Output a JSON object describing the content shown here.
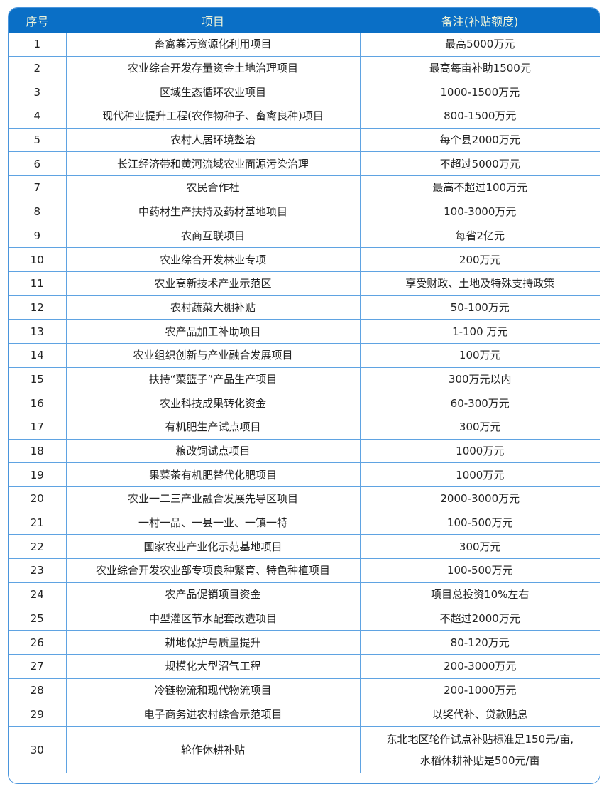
{
  "headers": [
    "序号",
    "项目",
    "备注(补贴额度)"
  ],
  "rows": [
    {
      "no": "1",
      "item": "畜禽粪污资源化利用项目",
      "note": "最高5000万元"
    },
    {
      "no": "2",
      "item": "农业综合开发存量资金土地治理项目",
      "note": "最高每亩补助1500元"
    },
    {
      "no": "3",
      "item": "区域生态循环农业项目",
      "note": "1000-1500万元"
    },
    {
      "no": "4",
      "item": "现代种业提升工程(农作物种子、畜禽良种)项目",
      "note": "800-1500万元"
    },
    {
      "no": "5",
      "item": "农村人居环境整治",
      "note": "每个县2000万元"
    },
    {
      "no": "6",
      "item": "长江经济带和黄河流域农业面源污染治理",
      "note": "不超过5000万元"
    },
    {
      "no": "7",
      "item": "农民合作社",
      "note": "最高不超过100万元"
    },
    {
      "no": "8",
      "item": "中药材生产扶持及药材基地项目",
      "note": "100-3000万元"
    },
    {
      "no": "9",
      "item": "农商互联项目",
      "note": "每省2亿元"
    },
    {
      "no": "10",
      "item": "农业综合开发林业专项",
      "note": "200万元"
    },
    {
      "no": "11",
      "item": "农业高新技术产业示范区",
      "note": "享受财政、土地及特殊支持政策"
    },
    {
      "no": "12",
      "item": "农村蔬菜大棚补贴",
      "note": "50-100万元"
    },
    {
      "no": "13",
      "item": "农产品加工补助项目",
      "note": "1-100 万元"
    },
    {
      "no": "14",
      "item": "农业组织创新与产业融合发展项目",
      "note": "100万元"
    },
    {
      "no": "15",
      "item": "扶持“菜篮子”产品生产项目",
      "note": "300万元以内"
    },
    {
      "no": "16",
      "item": "农业科技成果转化资金",
      "note": "60-300万元"
    },
    {
      "no": "17",
      "item": "有机肥生产试点项目",
      "note": "300万元"
    },
    {
      "no": "18",
      "item": "粮改饲试点项目",
      "note": "1000万元"
    },
    {
      "no": "19",
      "item": "果菜茶有机肥替代化肥项目",
      "note": "1000万元"
    },
    {
      "no": "20",
      "item": "农业一二三产业融合发展先导区项目",
      "note": "2000-3000万元"
    },
    {
      "no": "21",
      "item": "一村一品、一县一业、一镇一特",
      "note": "100-500万元"
    },
    {
      "no": "22",
      "item": "国家农业产业化示范基地项目",
      "note": "300万元"
    },
    {
      "no": "23",
      "item": "农业综合开发农业部专项良种繁育、特色种植项目",
      "note": "100-500万元"
    },
    {
      "no": "24",
      "item": "农产品促销项目资金",
      "note": "项目总投资10%左右"
    },
    {
      "no": "25",
      "item": "中型灌区节水配套改造项目",
      "note": "不超过2000万元"
    },
    {
      "no": "26",
      "item": "耕地保护与质量提升",
      "note": "80-120万元"
    },
    {
      "no": "27",
      "item": "规模化大型沼气工程",
      "note": "200-3000万元"
    },
    {
      "no": "28",
      "item": "冷链物流和现代物流项目",
      "note": "200-1000万元"
    },
    {
      "no": "29",
      "item": "电子商务进农村综合示范项目",
      "note": "以奖代补、贷款贴息"
    },
    {
      "no": "30",
      "item": "轮作休耕补贴",
      "note": "东北地区轮作试点补贴标准是150元/亩,",
      "note2": "水稻休耕补贴是500元/亩"
    }
  ],
  "colors": {
    "header_bg": "#0a6fc6",
    "grid": "#5fa3e2",
    "header_text": "#eef3d8"
  }
}
